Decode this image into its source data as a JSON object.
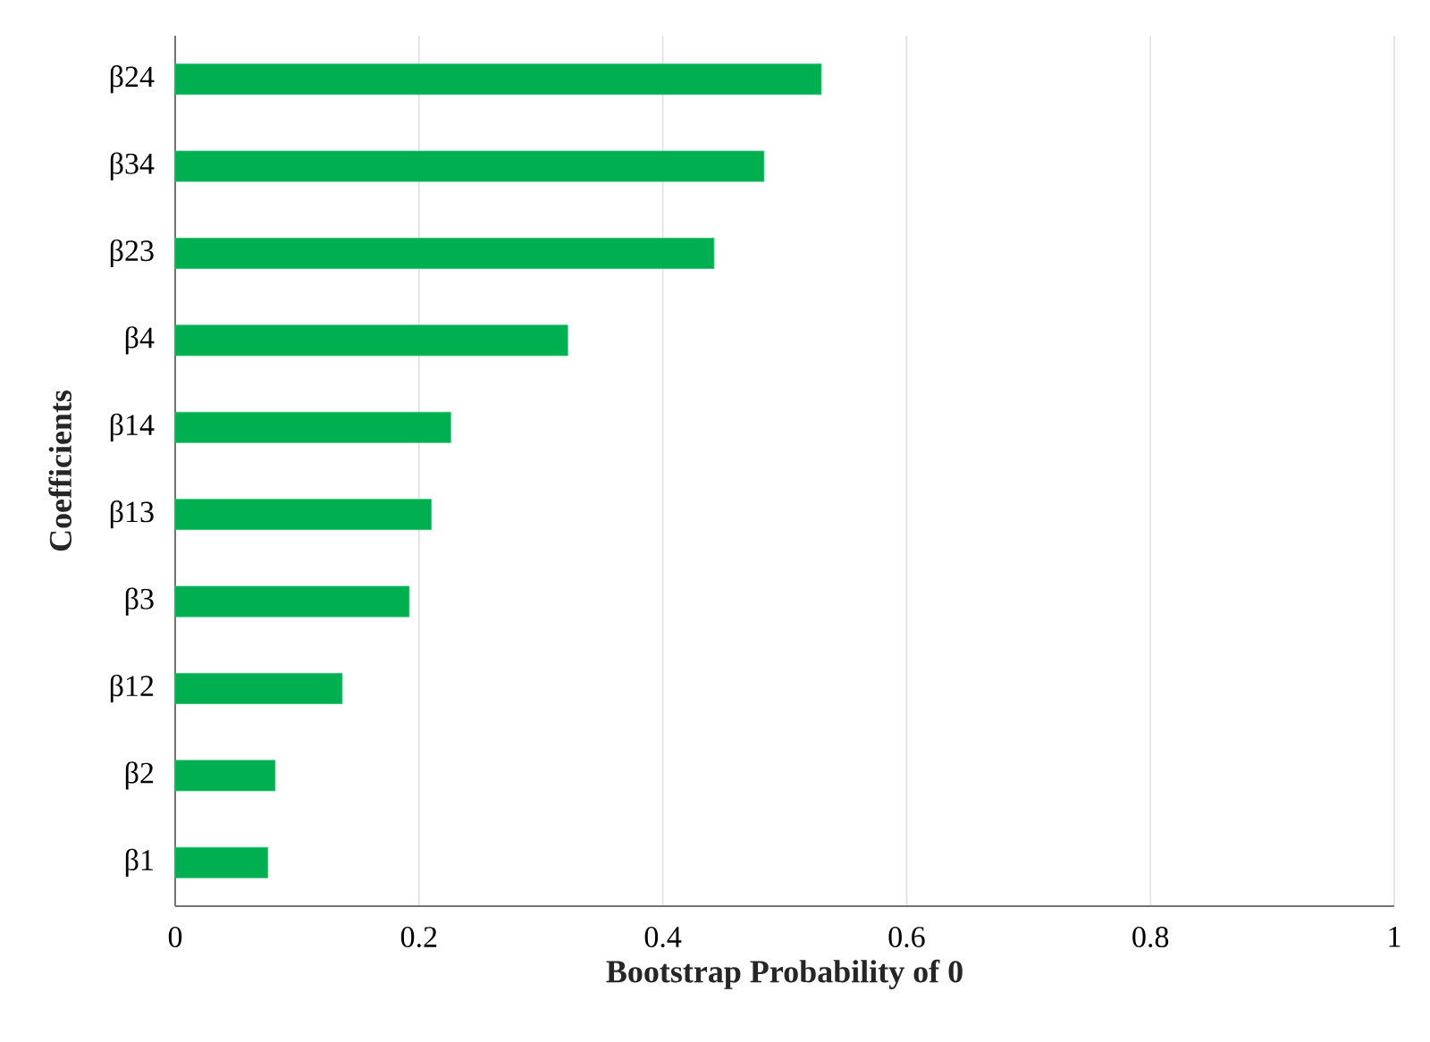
{
  "chart_data": {
    "type": "bar",
    "orientation": "horizontal",
    "xlabel": "Bootstrap Probability of 0",
    "ylabel": "Coefficients",
    "categories": [
      "β24",
      "β34",
      "β23",
      "β4",
      "β14",
      "β13",
      "β3",
      "β12",
      "β2",
      "β1"
    ],
    "values": [
      0.53,
      0.483,
      0.442,
      0.322,
      0.226,
      0.21,
      0.192,
      0.137,
      0.082,
      0.076
    ],
    "color": "#00b050",
    "xlim": [
      0,
      1
    ],
    "xticks": [
      0,
      0.2,
      0.4,
      0.6,
      0.8,
      1
    ],
    "grid": "x"
  }
}
